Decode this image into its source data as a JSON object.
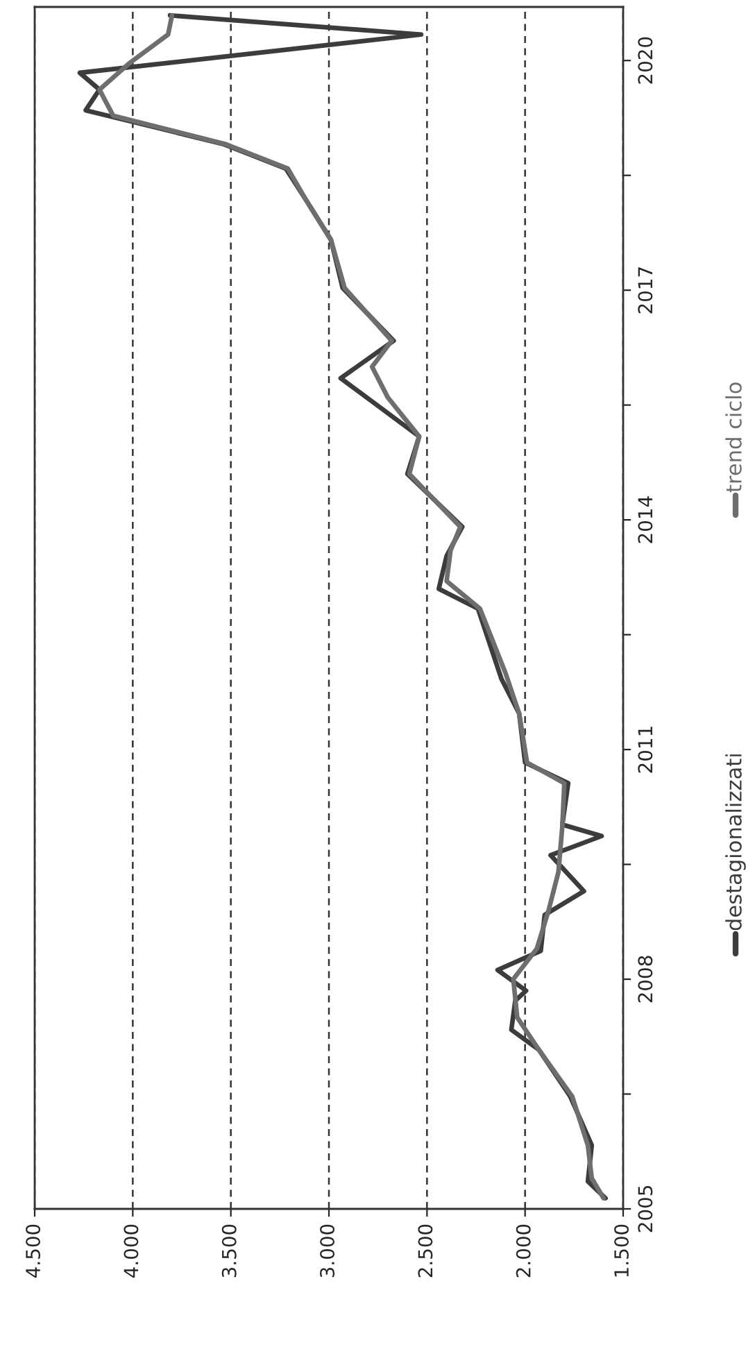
{
  "chart_data": {
    "type": "line",
    "orientation": "horizontal",
    "xlim": [
      4500,
      1500
    ],
    "xticks": [
      {
        "value": 4500,
        "label": "4.500"
      },
      {
        "value": 4000,
        "label": "4.000"
      },
      {
        "value": 3500,
        "label": "3.500"
      },
      {
        "value": 3000,
        "label": "3.000"
      },
      {
        "value": 2500,
        "label": "2.500"
      },
      {
        "value": 2000,
        "label": "2.000"
      },
      {
        "value": 1500,
        "label": "1.500"
      }
    ],
    "ylim": [
      2005,
      2020.7
    ],
    "yticks": [
      2005,
      {
        "value": 2006.5,
        "label": null
      },
      2008,
      {
        "value": 2009.5,
        "label": null
      },
      2011,
      {
        "value": 2012.5,
        "label": null
      },
      2014,
      {
        "value": 2015.5,
        "label": null
      },
      2017,
      {
        "value": 2018.5,
        "label": null
      },
      2020
    ],
    "grid": "x",
    "legend": "right",
    "line_style": "solid",
    "marker": "none",
    "series": [
      {
        "name": "destagionalizzati",
        "color": "#3c3c3c",
        "x": [
          2005.14,
          2005.36,
          2005.83,
          2006.47,
          2007.08,
          2007.34,
          2007.72,
          2007.85,
          2008.12,
          2008.37,
          2008.84,
          2009.15,
          2009.62,
          2009.87,
          2010.02,
          2010.56,
          2010.83,
          2011.47,
          2011.92,
          2012.84,
          2013.1,
          2013.53,
          2013.91,
          2014.6,
          2015.09,
          2015.85,
          2016.34,
          2017.03,
          2017.66,
          2018.15,
          2018.59,
          2018.91,
          2019.35,
          2019.62,
          2019.84,
          2020.34,
          2020.59
        ],
        "values": [
          1590,
          1680,
          1660,
          1770,
          1930,
          2070,
          2050,
          1995,
          2140,
          1920,
          1900,
          1700,
          1870,
          1610,
          1810,
          1780,
          2000,
          2030,
          2120,
          2240,
          2440,
          2400,
          2320,
          2600,
          2540,
          2940,
          2670,
          2930,
          2990,
          3110,
          3220,
          3540,
          4240,
          4170,
          4270,
          2530,
          3810
        ]
      },
      {
        "name": "trend ciclo",
        "color": "#6e6e6e",
        "x": [
          2005.14,
          2005.4,
          2005.83,
          2006.47,
          2007.08,
          2007.5,
          2008.0,
          2008.4,
          2008.9,
          2009.4,
          2010.0,
          2010.56,
          2010.83,
          2011.47,
          2012.0,
          2012.84,
          2013.2,
          2013.6,
          2013.91,
          2014.6,
          2015.09,
          2015.6,
          2016.0,
          2016.34,
          2017.03,
          2017.66,
          2018.15,
          2018.59,
          2018.91,
          2019.28,
          2019.62,
          2019.96,
          2020.34,
          2020.59
        ],
        "values": [
          1600,
          1660,
          1680,
          1760,
          1930,
          2040,
          2060,
          1940,
          1880,
          1830,
          1810,
          1800,
          1990,
          2030,
          2100,
          2230,
          2400,
          2380,
          2330,
          2590,
          2540,
          2700,
          2780,
          2680,
          2920,
          2990,
          3110,
          3210,
          3530,
          4100,
          4170,
          4020,
          3820,
          3800
        ]
      }
    ]
  }
}
